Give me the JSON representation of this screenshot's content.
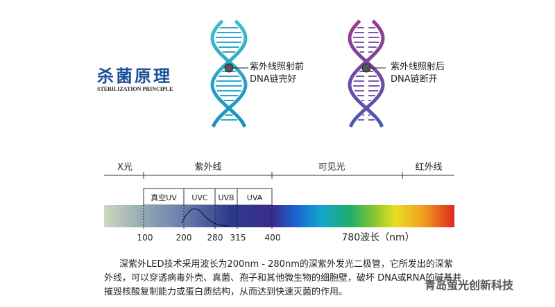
{
  "header": {
    "title": "杀菌原理",
    "subtitle": "STERILIZATION PRINCIPLE"
  },
  "dna": [
    {
      "lines": [
        "紫外线照射前",
        "DNA链完好"
      ]
    },
    {
      "lines": [
        "紫外线照射后",
        "DNA链断开"
      ]
    }
  ],
  "spectrum": {
    "regions": [
      "X光",
      "紫外线",
      "可见光",
      "红外线"
    ],
    "uv_bands": [
      "真空UV",
      "UVC",
      "UVB",
      "UVA"
    ],
    "scale_labels": [
      "100",
      "200",
      "280",
      "315",
      "400",
      "780波长（nm）"
    ]
  },
  "description": {
    "lines": [
      "深紫外LED技术采用波长为200nm - 280nm的深紫外发光二极管，它所发出的深紫",
      "外线，可以穿透病毒外壳、真菌、孢子和其他微生物的细胞壁，破坏 DNA或RNA的碱基并",
      "摧毁核酸复制能力或蛋白质结构，从而达到快速灭菌的作用。"
    ]
  },
  "watermark": "青岛萤光创新科技"
}
